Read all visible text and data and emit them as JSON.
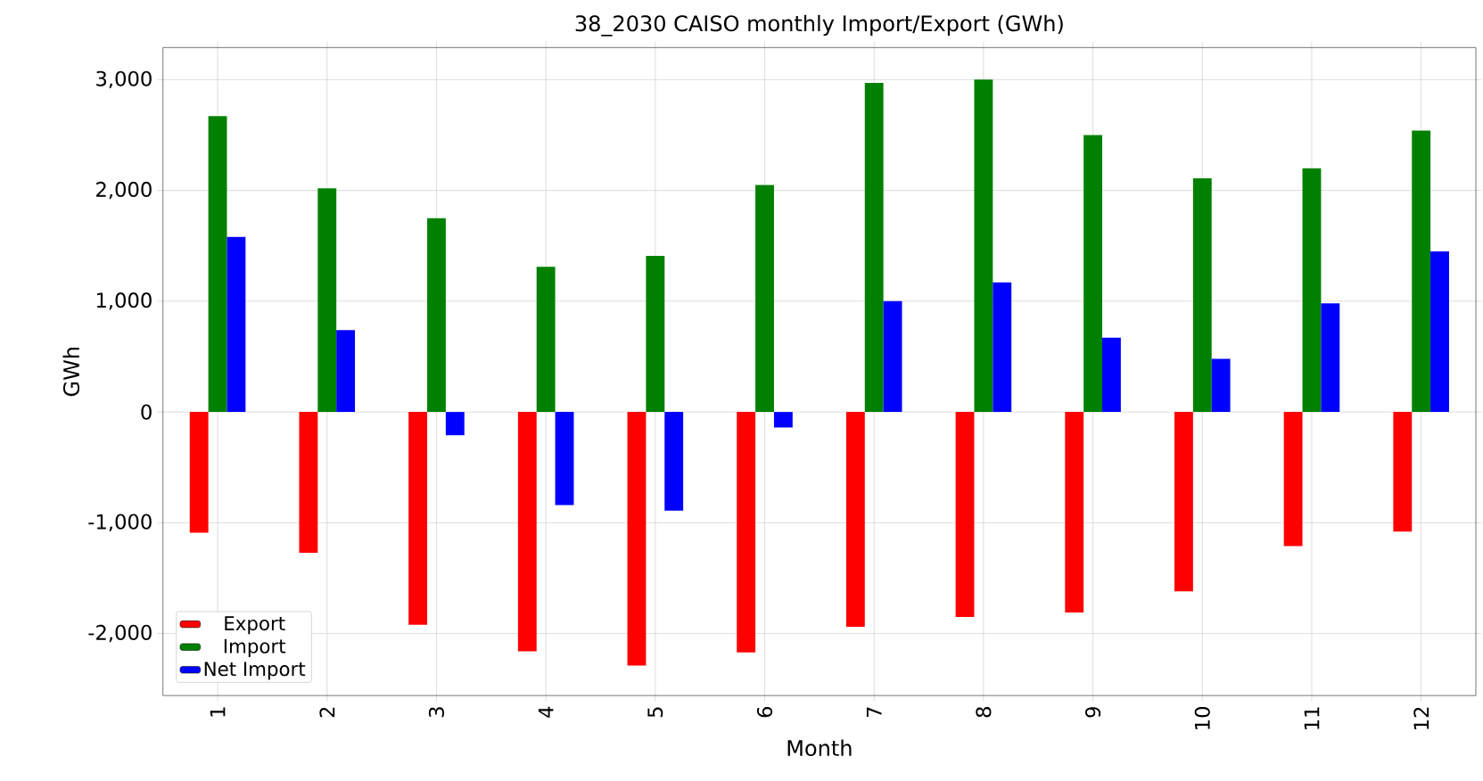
{
  "chart_data": {
    "type": "bar",
    "title": "38_2030 CAISO monthly Import/Export (GWh)",
    "xlabel": "Month",
    "ylabel": "GWh",
    "categories": [
      "1",
      "2",
      "3",
      "4",
      "5",
      "6",
      "7",
      "8",
      "9",
      "10",
      "11",
      "12"
    ],
    "series": [
      {
        "name": "Export",
        "color": "#ff0000",
        "values": [
          -1090,
          -1270,
          -1920,
          -2160,
          -2290,
          -2170,
          -1940,
          -1850,
          -1810,
          -1620,
          -1210,
          -1080
        ]
      },
      {
        "name": "Import",
        "color": "#008000",
        "values": [
          2670,
          2020,
          1750,
          1310,
          1410,
          2050,
          2970,
          3000,
          2500,
          2110,
          2200,
          2540
        ]
      },
      {
        "name": "Net Import",
        "color": "#0000ff",
        "values": [
          1580,
          740,
          -210,
          -840,
          -890,
          -140,
          1000,
          1170,
          670,
          480,
          980,
          1450
        ]
      }
    ],
    "ylim": [
      -2560,
      3290
    ],
    "yticks": [
      {
        "value": -2000,
        "label": "-2,000"
      },
      {
        "value": -1000,
        "label": "-1,000"
      },
      0,
      {
        "value": 1000,
        "label": "1,000"
      },
      {
        "value": 2000,
        "label": "2,000"
      },
      {
        "value": 3000,
        "label": "3,000"
      }
    ],
    "grid": true,
    "legend": "bottom left"
  }
}
